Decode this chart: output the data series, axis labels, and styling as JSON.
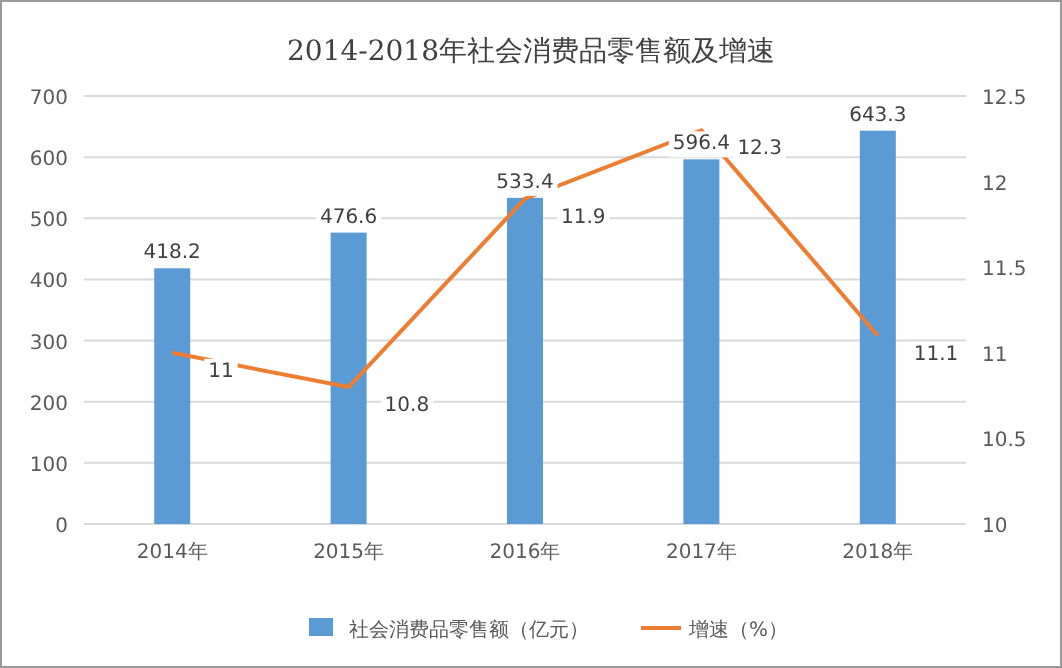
{
  "chart_data": {
    "type": "bar",
    "title": "2014-2018年社会消费品零售额及增速",
    "categories": [
      "2014年",
      "2015年",
      "2016年",
      "2017年",
      "2018年"
    ],
    "series": [
      {
        "name": "社会消费品零售额（亿元）",
        "color": "#5b9bd5",
        "values": [
          418.2,
          476.6,
          533.4,
          596.4,
          643.3
        ]
      },
      {
        "name": "增速（%）",
        "type": "line",
        "axis": "y2",
        "color": "#ed7d31",
        "values": [
          11,
          10.8,
          11.9,
          12.3,
          11.1
        ]
      }
    ],
    "ylim": [
      0,
      700
    ],
    "yticks": [
      0,
      100,
      200,
      300,
      400,
      500,
      600,
      700
    ],
    "y2lim": [
      10,
      12.5
    ],
    "y2ticks": [
      10,
      10.5,
      11,
      11.5,
      12,
      12.5
    ],
    "data_labels": true,
    "grid": "y",
    "legend": "bottom",
    "marker": "none"
  }
}
